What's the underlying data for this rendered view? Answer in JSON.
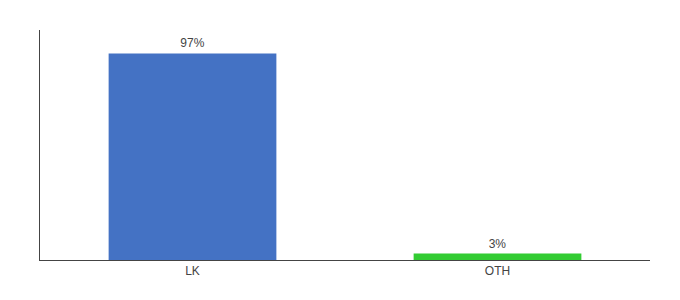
{
  "chart_data": {
    "type": "bar",
    "categories": [
      "LK",
      "OTH"
    ],
    "values": [
      97,
      3
    ],
    "value_labels": [
      "97%",
      "3%"
    ],
    "colors": [
      "#4472c4",
      "#33cc33"
    ],
    "ylim": [
      0,
      108
    ],
    "data_labels": true,
    "tick_labels": "x",
    "grid": false
  }
}
